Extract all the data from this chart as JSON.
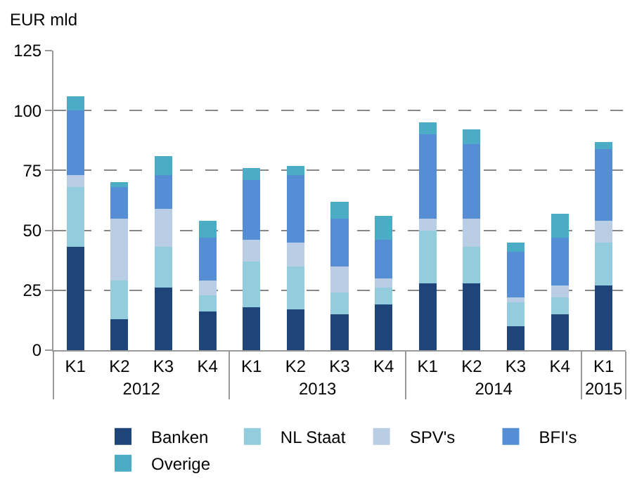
{
  "chart_data": {
    "type": "bar",
    "stacked": true,
    "ylabel": "EUR mld",
    "categories": [
      "K1",
      "K2",
      "K3",
      "K4",
      "K1",
      "K2",
      "K3",
      "K4",
      "K1",
      "K2",
      "K3",
      "K4",
      "K1"
    ],
    "annotations": [
      "2012",
      "2013",
      "2014",
      "2015"
    ],
    "series": [
      {
        "name": "Banken",
        "color": "#1f4479",
        "values": [
          43,
          13,
          26,
          16,
          18,
          17,
          15,
          19,
          28,
          28,
          10,
          15,
          27
        ]
      },
      {
        "name": "NL Staat",
        "color": "#93cddd",
        "values": [
          25,
          16,
          17,
          7,
          19,
          18,
          9,
          7,
          22,
          15,
          10,
          7,
          18
        ]
      },
      {
        "name": "SPV's",
        "color": "#b9cde5",
        "values": [
          5,
          26,
          16,
          6,
          9,
          10,
          11,
          4,
          5,
          12,
          2,
          5,
          9
        ]
      },
      {
        "name": "BFI's",
        "color": "#558ed5",
        "values": [
          27,
          13,
          14,
          18,
          25,
          28,
          20,
          16,
          35,
          31,
          19,
          20,
          30
        ]
      },
      {
        "name": "Overige",
        "color": "#4bacc6",
        "values": [
          6,
          2,
          8,
          7,
          5,
          4,
          7,
          10,
          5,
          6,
          4,
          10,
          3
        ]
      }
    ],
    "ylim": [
      0,
      125
    ],
    "yticks": [
      0,
      25,
      50,
      75,
      100,
      125
    ],
    "grid": "y",
    "legend": "bottom"
  }
}
